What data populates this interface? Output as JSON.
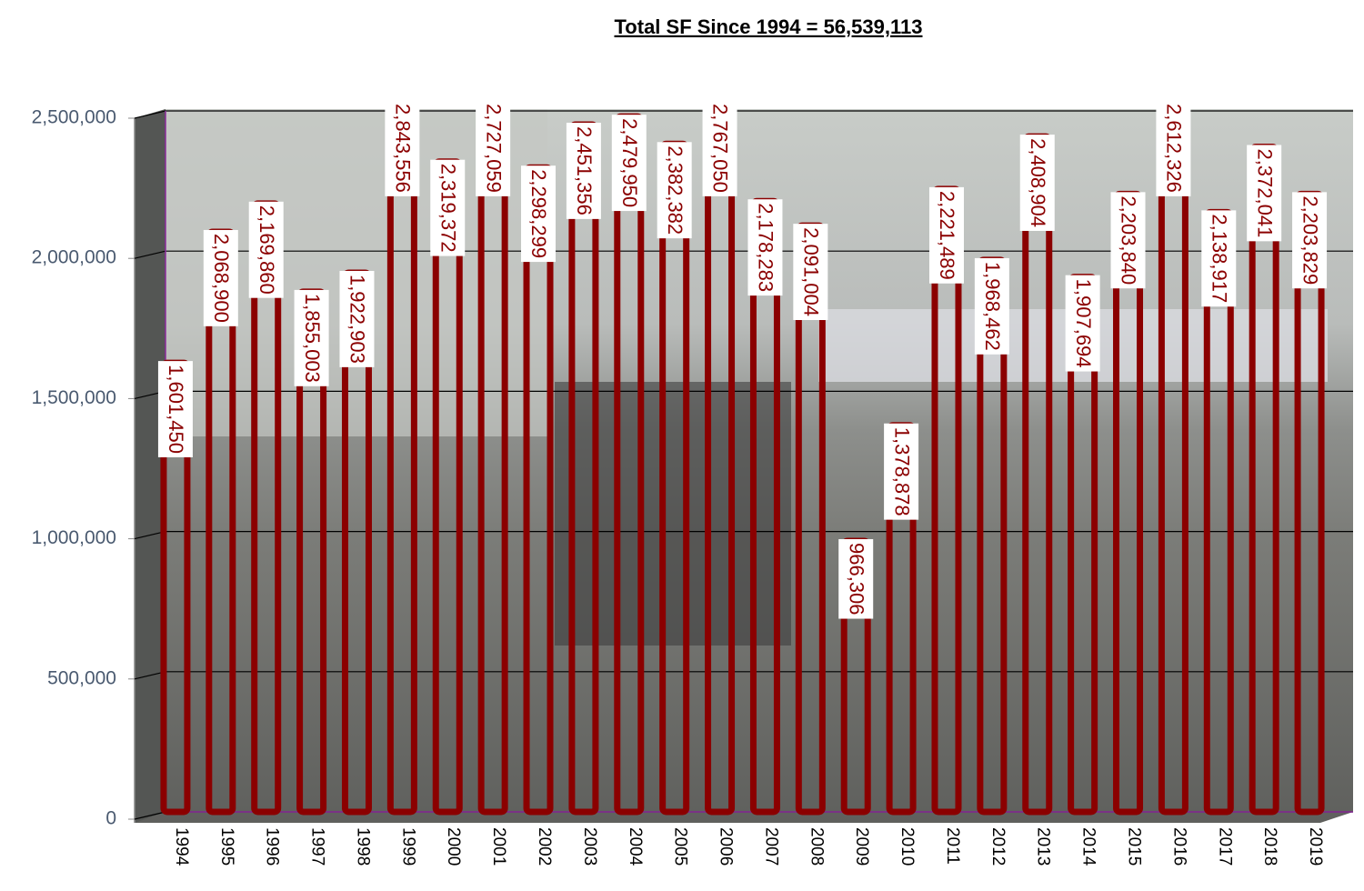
{
  "chart_data": {
    "type": "bar",
    "title": "Total SF Since 1994 = 56,539,113",
    "categories": [
      "1994",
      "1995",
      "1996",
      "1997",
      "1998",
      "1999",
      "2000",
      "2001",
      "2002",
      "2003",
      "2004",
      "2005",
      "2006",
      "2007",
      "2008",
      "2009",
      "2010",
      "2011",
      "2012",
      "2013",
      "2014",
      "2015",
      "2016",
      "2017",
      "2018",
      "2019"
    ],
    "values": [
      1601450,
      2068900,
      2169860,
      1855003,
      1922903,
      2843556,
      2319372,
      2727059,
      2298299,
      2451356,
      2479950,
      2382382,
      2767050,
      2178283,
      2091004,
      966306,
      1378878,
      2221489,
      1968462,
      2408904,
      1907694,
      2203840,
      2612326,
      2138917,
      2372041,
      2203829
    ],
    "value_labels": [
      "1,601,450",
      "2,068,900",
      "2,169,860",
      "1,855,003",
      "1,922,903",
      "2,843,556",
      "2,319,372",
      "2,727,059",
      "2,298,299",
      "2,451,356",
      "2,479,950",
      "2,382,382",
      "2,767,050",
      "2,178,283",
      "2,091,004",
      "966,306",
      "1,378,878",
      "2,221,489",
      "1,968,462",
      "2,408,904",
      "1,907,694",
      "2,203,840",
      "2,612,326",
      "2,138,917",
      "2,372,041",
      "2,203,829"
    ],
    "color": "#8b0000",
    "ylim": [
      0,
      2500000
    ],
    "yticks": [
      0,
      {
        "value": 500000,
        "label": "500,000"
      },
      {
        "value": 1000000,
        "label": "1,000,000"
      },
      {
        "value": 1500000,
        "label": "1,500,000"
      },
      {
        "value": 2000000,
        "label": "2,000,000"
      },
      {
        "value": 2500000,
        "label": "2,500,000"
      }
    ],
    "grid": true
  }
}
